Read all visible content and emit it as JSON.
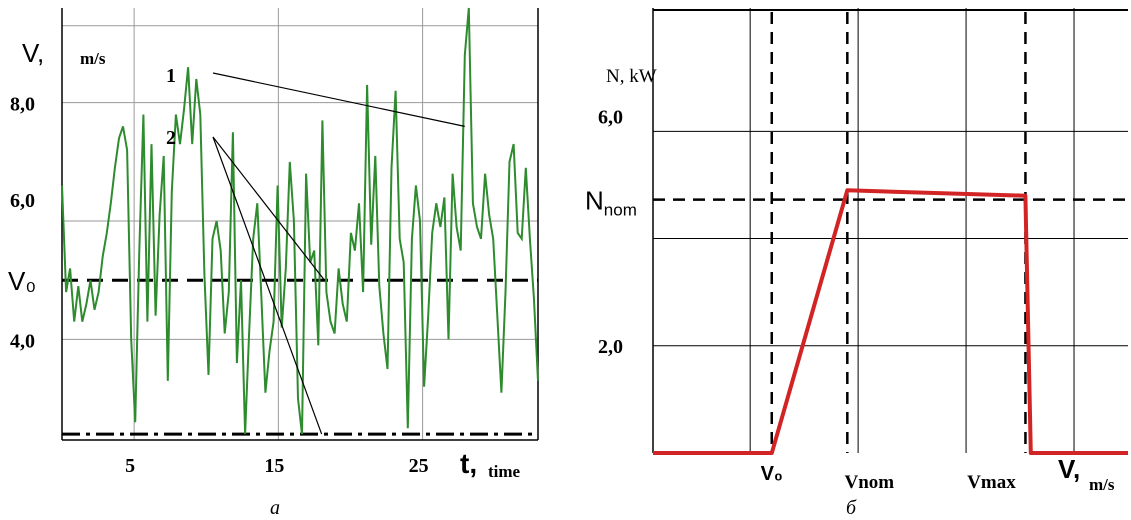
{
  "chart_data": [
    {
      "panel_label": "а",
      "type": "line",
      "ylabel": "V,",
      "ylabel_unit": "m/s",
      "xlabel": "t,",
      "xlabel_unit": "time",
      "x_ticks": [
        "5",
        "15",
        "25"
      ],
      "x_tick_values": [
        5,
        15,
        25
      ],
      "y_ticks": [
        "8,0",
        "6,0",
        "4,0"
      ],
      "y_tick_values": [
        8,
        6,
        4
      ],
      "ref_label": "V₀",
      "ref_value": 5,
      "floor_value": 2.4,
      "xlim": [
        0,
        33
      ],
      "ylim": [
        2.3,
        9.6
      ],
      "grid": true,
      "annotations": [
        "1",
        "2"
      ],
      "series_color": "#2e8b2e",
      "series": [
        {
          "values": [
            6.6,
            4.8,
            5.2,
            4.3,
            4.9,
            4.3,
            4.6,
            5.0,
            4.5,
            4.8,
            5.4,
            5.8,
            6.3,
            6.9,
            7.4,
            7.6,
            7.2,
            4.0,
            2.6,
            5.5,
            7.8,
            4.3,
            7.3,
            4.4,
            6.1,
            7.1,
            3.3,
            6.5,
            7.8,
            7.3,
            7.9,
            8.6,
            7.3,
            8.4,
            7.8,
            5.1,
            3.4,
            5.7,
            6.0,
            5.5,
            4.1,
            4.8,
            7.5,
            3.6,
            5.0,
            2.4,
            4.1,
            5.7,
            6.3,
            4.7,
            3.1,
            3.8,
            4.3,
            6.6,
            4.2,
            5.2,
            7.0,
            6.0,
            3.0,
            2.4,
            6.8,
            5.3,
            5.5,
            3.9,
            7.7,
            4.8,
            4.3,
            4.1,
            5.2,
            4.6,
            4.3,
            5.8,
            5.5,
            6.3,
            4.8,
            8.3,
            5.6,
            7.1,
            4.9,
            4.1,
            3.5,
            6.9,
            8.2,
            5.7,
            5.3,
            2.5,
            5.7,
            6.6,
            6.0,
            3.2,
            4.4,
            5.8,
            6.3,
            5.9,
            6.4,
            4.0,
            6.8,
            5.9,
            5.5,
            8.8,
            9.6,
            6.3,
            5.9,
            5.7,
            6.8,
            6.1,
            5.7,
            4.4,
            3.1,
            4.8,
            7.0,
            7.3,
            5.8,
            5.7,
            6.9,
            5.7,
            4.7,
            3.3
          ]
        }
      ]
    },
    {
      "panel_label": "б",
      "type": "line",
      "ylabel": "N, kW",
      "xlabel": "V,",
      "xlabel_unit": "m/s",
      "y_ticks": [
        "6,0",
        "2,0"
      ],
      "y_tick_values": [
        6,
        2
      ],
      "n_nom_label": "N",
      "n_nom_sub": "nom",
      "x_marks": [
        "V₀",
        "Vnom",
        "Vmax"
      ],
      "series_color": "#d22424",
      "series": [
        {
          "x": [
            0,
            2.2,
            3.6,
            6.9,
            7.0,
            8.8
          ],
          "y": [
            0,
            0,
            4.9,
            4.8,
            0,
            0
          ]
        }
      ],
      "n_nom_value": 4.8,
      "v0": 2.2,
      "vnom": 3.6,
      "vmax": 6.9,
      "xlim": [
        0,
        8.8
      ],
      "ylim": [
        0,
        8.3
      ],
      "grid": true
    }
  ]
}
